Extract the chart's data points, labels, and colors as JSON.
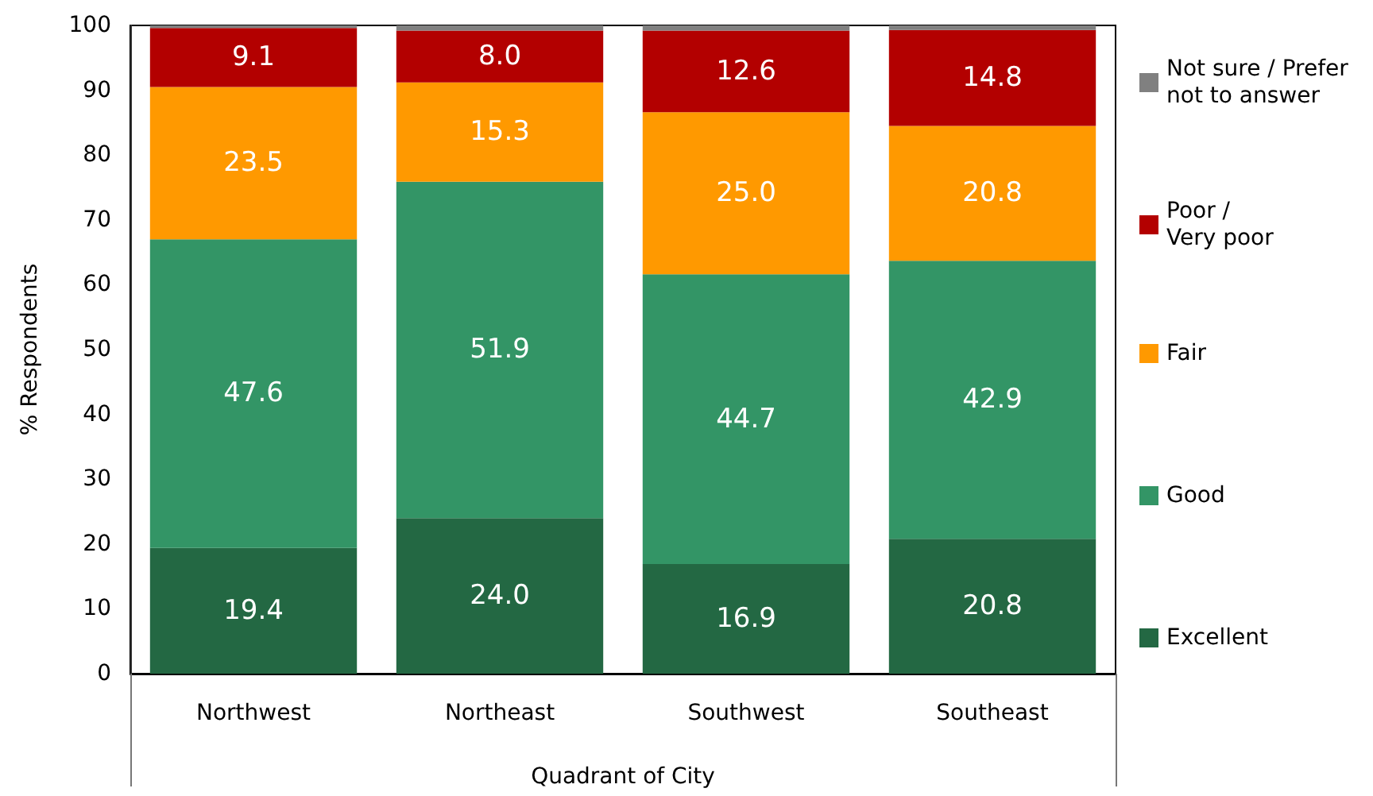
{
  "chart_data": {
    "type": "bar",
    "stacked": true,
    "xlabel": "Quadrant of City",
    "ylabel": "% Respondents",
    "categories": [
      "Northwest",
      "Northeast",
      "Southwest",
      "Southeast"
    ],
    "ylim": [
      0,
      100
    ],
    "yticks": [
      0,
      10,
      20,
      30,
      40,
      50,
      60,
      70,
      80,
      90,
      100
    ],
    "legend": "right",
    "series": [
      {
        "name": "Excellent",
        "color": "#236843",
        "values": [
          19.4,
          24.0,
          16.9,
          20.8
        ],
        "value_labels": [
          "19.4",
          "24.0",
          "16.9",
          "20.8"
        ]
      },
      {
        "name": "Good",
        "color": "#339566",
        "values": [
          47.6,
          51.9,
          44.7,
          42.9
        ],
        "value_labels": [
          "47.6",
          "51.9",
          "44.7",
          "42.9"
        ]
      },
      {
        "name": "Fair",
        "color": "#ff9900",
        "values": [
          23.5,
          15.3,
          25.0,
          20.8
        ],
        "value_labels": [
          "23.5",
          "15.3",
          "25.0",
          "20.8"
        ]
      },
      {
        "name": "Poor /\nVery poor",
        "color": "#b30000",
        "values": [
          9.1,
          8.0,
          12.6,
          14.8
        ],
        "value_labels": [
          "9.1",
          "8.0",
          "12.6",
          "14.8"
        ]
      },
      {
        "name": "Not sure / Prefer\nnot to answer",
        "color": "#808080",
        "values": [
          0.4,
          0.8,
          0.8,
          0.7
        ]
      }
    ]
  }
}
